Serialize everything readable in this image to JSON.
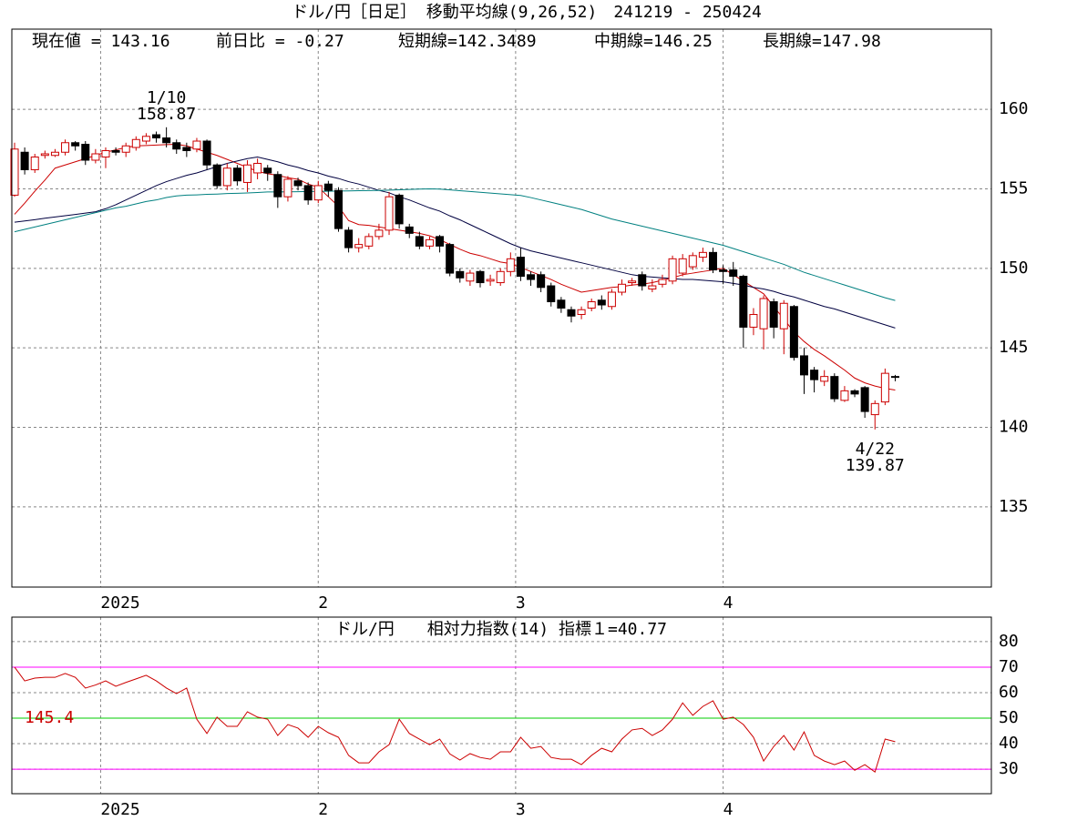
{
  "chart_data": [
    {
      "type": "candlestick",
      "title": "ドル/円［日足］ 移動平均線(9,26,52)　241219 - 250424",
      "header": [
        "現在値 = 143.16",
        "前日比 = -0.27",
        "短期線=142.3489",
        "中期線=146.25",
        "長期線=147.98"
      ],
      "categories": [
        null,
        null,
        null,
        null,
        null,
        null,
        null,
        null,
        null,
        null,
        null,
        null,
        null,
        null,
        null,
        null,
        null,
        null,
        null,
        null,
        null,
        null,
        null,
        null,
        null,
        null,
        null,
        null,
        null,
        null,
        null,
        null,
        null,
        null,
        null,
        null,
        null,
        null,
        null,
        null,
        null,
        null,
        null,
        null,
        null,
        null,
        null,
        null,
        null,
        null,
        null,
        null,
        null,
        null,
        null,
        null,
        null,
        null,
        null,
        null,
        null,
        null,
        null,
        null,
        null,
        null,
        null,
        null,
        null,
        null,
        null,
        null,
        null,
        null,
        null,
        null,
        null,
        null,
        null,
        null,
        null,
        null,
        null,
        null,
        null,
        null,
        null,
        null
      ],
      "open": [
        154.6,
        157.3,
        156.2,
        157.1,
        157.1,
        157.3,
        157.9,
        157.8,
        156.8,
        157.0,
        157.4,
        157.3,
        157.6,
        158.0,
        158.4,
        158.2,
        157.9,
        157.6,
        157.5,
        158.0,
        156.5,
        155.2,
        156.3,
        155.4,
        156.0,
        156.3,
        155.9,
        154.5,
        155.5,
        155.2,
        154.3,
        155.3,
        154.9,
        152.4,
        151.3,
        151.4,
        152.0,
        152.4,
        154.6,
        152.6,
        152.0,
        151.4,
        152.0,
        151.5,
        149.8,
        149.2,
        149.8,
        149.2,
        149.1,
        149.8,
        150.7,
        149.6,
        149.6,
        148.9,
        148.0,
        147.4,
        147.1,
        147.5,
        148.0,
        147.6,
        148.5,
        149.1,
        149.6,
        148.7,
        149.0,
        149.2,
        149.7,
        150.1,
        150.7,
        151.0,
        149.9,
        149.9,
        149.5,
        146.3,
        146.2,
        147.9,
        146.2,
        147.6,
        144.5,
        143.6,
        142.9,
        143.2,
        141.7,
        142.3,
        142.5,
        140.8,
        141.6,
        143.2
      ],
      "high": [
        157.9,
        157.6,
        157.2,
        157.4,
        157.5,
        158.1,
        158.0,
        158.0,
        157.5,
        157.6,
        157.6,
        157.9,
        158.3,
        158.5,
        158.6,
        158.87,
        158.1,
        157.9,
        158.2,
        158.1,
        156.6,
        156.6,
        156.5,
        156.8,
        156.9,
        156.5,
        156.1,
        155.8,
        155.7,
        155.4,
        155.5,
        155.5,
        155.1,
        152.6,
        151.9,
        152.2,
        152.8,
        154.8,
        154.7,
        152.8,
        152.3,
        152.0,
        152.1,
        151.6,
        150.0,
        149.9,
        149.9,
        149.6,
        150.0,
        151.0,
        151.3,
        149.8,
        149.8,
        149.1,
        148.2,
        147.6,
        147.6,
        148.1,
        148.3,
        148.7,
        149.3,
        149.4,
        149.8,
        149.3,
        149.6,
        150.8,
        150.9,
        151.0,
        151.3,
        151.3,
        150.2,
        150.4,
        149.6,
        147.5,
        148.3,
        148.1,
        148.0,
        147.7,
        145.0,
        143.8,
        143.6,
        143.4,
        142.6,
        142.4,
        142.6,
        141.7,
        143.7,
        143.3
      ],
      "low": [
        154.5,
        155.9,
        156.0,
        156.9,
        157.0,
        157.1,
        157.4,
        156.5,
        156.6,
        156.3,
        157.1,
        157.0,
        157.4,
        157.8,
        157.9,
        157.6,
        157.2,
        157.0,
        157.3,
        156.2,
        155.0,
        154.9,
        155.2,
        154.8,
        155.6,
        155.5,
        153.8,
        154.2,
        154.9,
        154.0,
        154.1,
        154.5,
        152.3,
        151.0,
        151.0,
        151.2,
        151.8,
        152.1,
        152.5,
        151.9,
        151.2,
        151.2,
        151.0,
        149.5,
        149.1,
        148.9,
        148.8,
        148.9,
        148.9,
        149.5,
        149.2,
        148.9,
        148.5,
        147.6,
        147.2,
        146.6,
        146.8,
        147.3,
        147.4,
        147.4,
        148.3,
        148.9,
        148.6,
        148.5,
        148.8,
        149.0,
        149.5,
        149.9,
        150.4,
        149.7,
        149.0,
        148.9,
        145.0,
        145.8,
        144.9,
        145.6,
        144.6,
        144.2,
        142.1,
        142.2,
        142.6,
        141.6,
        141.6,
        141.9,
        140.6,
        139.87,
        141.4,
        142.9
      ],
      "close": [
        157.5,
        156.2,
        157.0,
        157.2,
        157.3,
        157.9,
        157.7,
        156.8,
        157.2,
        157.4,
        157.3,
        157.7,
        158.1,
        158.3,
        158.2,
        157.9,
        157.5,
        157.4,
        158.0,
        156.5,
        155.2,
        156.3,
        155.5,
        156.5,
        156.6,
        156.0,
        154.5,
        155.6,
        155.2,
        154.3,
        155.2,
        154.9,
        152.5,
        151.3,
        151.5,
        152.0,
        152.4,
        154.5,
        152.8,
        152.2,
        151.4,
        151.8,
        151.4,
        149.7,
        149.4,
        149.7,
        149.1,
        149.3,
        149.8,
        150.6,
        149.5,
        149.3,
        148.8,
        147.9,
        147.5,
        147.0,
        147.4,
        147.9,
        147.7,
        148.5,
        149.0,
        149.2,
        148.9,
        148.9,
        149.3,
        150.6,
        150.6,
        150.8,
        151.0,
        149.9,
        149.8,
        149.5,
        146.3,
        147.1,
        148.1,
        146.3,
        147.8,
        144.4,
        143.3,
        143.0,
        143.2,
        141.8,
        142.3,
        142.1,
        141.0,
        141.5,
        143.4,
        143.16
      ],
      "up_color": "#cc0000",
      "down_color": "#000000",
      "series": [
        {
          "color": "#cc0000",
          "values": [
            153.4,
            154.1,
            154.85,
            155.55,
            156.3,
            156.5,
            156.7,
            156.9,
            157.1,
            157.3,
            157.45,
            157.6,
            157.7,
            157.72,
            157.75,
            157.78,
            157.8,
            157.7,
            157.5,
            157.3,
            157.1,
            156.85,
            156.6,
            156.35,
            156.1,
            155.95,
            155.85,
            155.7,
            155.6,
            155.3,
            155.1,
            154.5,
            153.9,
            153.0,
            152.75,
            152.7,
            152.6,
            152.5,
            152.4,
            152.3,
            152.2,
            152.05,
            151.8,
            151.5,
            151.2,
            150.95,
            150.8,
            150.6,
            150.4,
            150.3,
            150.05,
            149.8,
            149.55,
            149.3,
            149.0,
            148.75,
            148.5,
            148.6,
            148.7,
            148.8,
            148.85,
            148.95,
            149.0,
            149.1,
            149.25,
            149.4,
            149.6,
            149.7,
            149.8,
            149.9,
            150.0,
            149.6,
            149.2,
            148.8,
            148.4,
            147.6,
            146.8,
            146.0,
            145.4,
            144.9,
            144.5,
            144.05,
            143.6,
            143.1,
            142.8,
            142.6,
            142.45,
            142.35
          ]
        },
        {
          "color": "#000040",
          "values": [
            152.9,
            152.98,
            153.06,
            153.15,
            153.23,
            153.31,
            153.39,
            153.47,
            153.56,
            153.75,
            154.0,
            154.3,
            154.6,
            154.9,
            155.2,
            155.45,
            155.65,
            155.85,
            156.0,
            156.2,
            156.4,
            156.6,
            156.75,
            156.9,
            157.0,
            156.85,
            156.7,
            156.5,
            156.35,
            156.15,
            156.0,
            155.8,
            155.65,
            155.45,
            155.3,
            155.1,
            154.9,
            154.75,
            154.5,
            154.3,
            154.05,
            153.8,
            153.6,
            153.3,
            153.05,
            152.75,
            152.45,
            152.15,
            151.85,
            151.55,
            151.3,
            151.1,
            150.95,
            150.8,
            150.65,
            150.5,
            150.35,
            150.2,
            150.05,
            149.9,
            149.75,
            149.6,
            149.5,
            149.45,
            149.4,
            149.35,
            149.3,
            149.3,
            149.25,
            149.2,
            149.15,
            149.05,
            148.95,
            148.8,
            148.7,
            148.55,
            148.35,
            148.2,
            148.0,
            147.8,
            147.6,
            147.45,
            147.25,
            147.05,
            146.85,
            146.65,
            146.45,
            146.25
          ]
        },
        {
          "color": "#008080",
          "values": [
            152.3,
            152.45,
            152.6,
            152.75,
            152.9,
            153.05,
            153.2,
            153.35,
            153.5,
            153.65,
            153.8,
            153.9,
            154.05,
            154.2,
            154.3,
            154.45,
            154.55,
            154.6,
            154.62,
            154.65,
            154.67,
            154.7,
            154.72,
            154.74,
            154.77,
            154.8,
            154.8,
            154.81,
            154.82,
            154.83,
            154.84,
            154.85,
            154.86,
            154.87,
            154.88,
            154.89,
            154.9,
            154.92,
            154.94,
            154.96,
            154.98,
            155.0,
            154.98,
            154.93,
            154.88,
            154.83,
            154.78,
            154.73,
            154.68,
            154.63,
            154.58,
            154.45,
            154.3,
            154.15,
            154.0,
            153.85,
            153.7,
            153.5,
            153.3,
            153.1,
            152.95,
            152.8,
            152.65,
            152.5,
            152.35,
            152.2,
            152.05,
            151.9,
            151.75,
            151.6,
            151.45,
            151.25,
            151.05,
            150.85,
            150.65,
            150.45,
            150.25,
            150.0,
            149.75,
            149.55,
            149.35,
            149.15,
            148.95,
            148.75,
            148.55,
            148.35,
            148.15,
            147.98
          ]
        }
      ],
      "annotations": [
        {
          "label": "1/10",
          "value": 158.87
        },
        {
          "label": "4/22",
          "value": 139.87
        }
      ],
      "xlim": [
        -0.27,
        96.5
      ],
      "xticks": [
        {
          "value": 8.5,
          "label": "2025"
        },
        {
          "value": 30,
          "label": "2"
        },
        {
          "value": 49.5,
          "label": "3"
        },
        {
          "value": 70,
          "label": "4"
        }
      ],
      "ylim": [
        129.96,
        165.04
      ],
      "yticks": [
        135,
        140,
        145,
        150,
        155,
        160
      ],
      "grid": true
    },
    {
      "type": "line",
      "title": "ドル/円　　相対力指数(14) 指標１=40.77",
      "categories": [
        null,
        null,
        null,
        null,
        null,
        null,
        null,
        null,
        null,
        null,
        null,
        null,
        null,
        null,
        null,
        null,
        null,
        null,
        null,
        null,
        null,
        null,
        null,
        null,
        null,
        null,
        null,
        null,
        null,
        null,
        null,
        null,
        null,
        null,
        null,
        null,
        null,
        null,
        null,
        null,
        null,
        null,
        null,
        null,
        null,
        null,
        null,
        null,
        null,
        null,
        null,
        null,
        null,
        null,
        null,
        null,
        null,
        null,
        null,
        null,
        null,
        null,
        null,
        null,
        null,
        null,
        null,
        null,
        null,
        null,
        null,
        null,
        null,
        null,
        null,
        null,
        null,
        null,
        null,
        null,
        null,
        null,
        null,
        null,
        null,
        null,
        null,
        null
      ],
      "series": [
        {
          "color": "#cc0000",
          "values": [
            70.0,
            64.6,
            65.7,
            66.0,
            66.0,
            67.5,
            66.0,
            61.8,
            63.0,
            64.6,
            62.5,
            64.0,
            65.4,
            66.8,
            64.6,
            61.8,
            59.6,
            61.8,
            49.6,
            44.0,
            50.4,
            46.8,
            46.8,
            52.5,
            50.4,
            49.6,
            43.2,
            47.5,
            46.1,
            42.5,
            46.8,
            44.3,
            42.5,
            35.4,
            32.5,
            32.5,
            36.8,
            39.6,
            49.6,
            44.0,
            41.8,
            39.6,
            41.8,
            36.0,
            33.6,
            36.1,
            34.6,
            33.9,
            36.8,
            36.8,
            42.5,
            38.2,
            38.9,
            34.6,
            33.9,
            33.9,
            31.8,
            35.4,
            38.2,
            36.8,
            41.8,
            45.4,
            46.0,
            43.2,
            45.4,
            49.6,
            56.0,
            51.1,
            54.6,
            56.8,
            49.6,
            50.4,
            47.5,
            42.5,
            33.2,
            38.9,
            43.2,
            37.5,
            44.6,
            35.4,
            33.2,
            31.8,
            33.2,
            29.6,
            31.8,
            28.9,
            41.8,
            40.77
          ]
        }
      ],
      "hlines": [
        {
          "value": 70,
          "color": "#ff00ff"
        },
        {
          "value": 50,
          "color": "#00cc00",
          "label": "145.4"
        },
        {
          "value": 30,
          "color": "#ff00ff"
        }
      ],
      "xlim": [
        -0.27,
        96.5
      ],
      "xticks": [
        {
          "value": 8.5,
          "label": "2025"
        },
        {
          "value": 30,
          "label": "2"
        },
        {
          "value": 49.5,
          "label": "3"
        },
        {
          "value": 70,
          "label": "4"
        }
      ],
      "ylim": [
        20.4,
        89.6
      ],
      "yticks": [
        30,
        40,
        50,
        60,
        70,
        80
      ],
      "grid": true
    }
  ]
}
